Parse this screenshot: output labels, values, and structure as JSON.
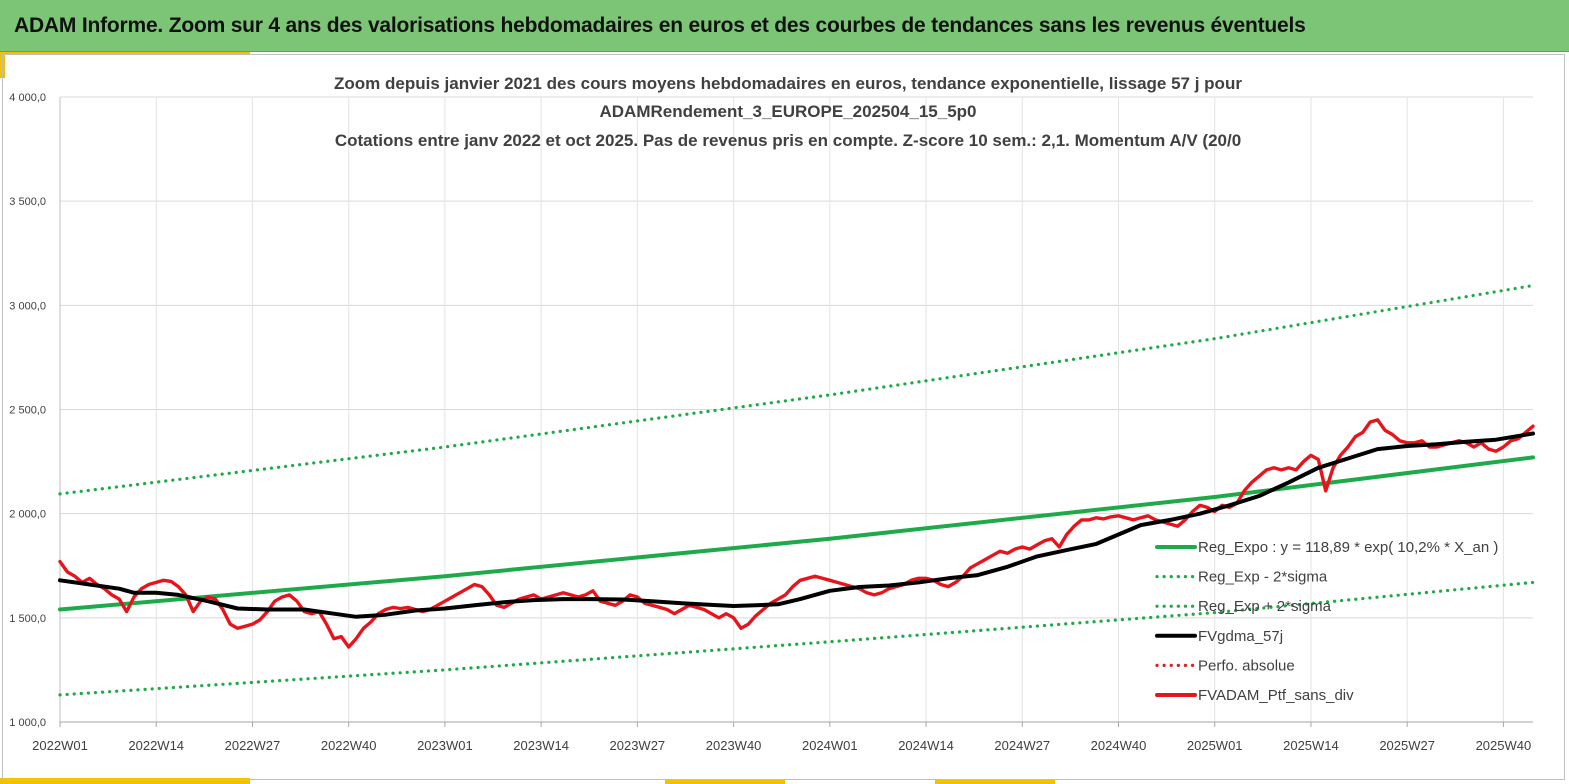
{
  "banner": {
    "title": "ADAM Informe. Zoom sur 4 ans des valorisations hebdomadaires en euros et des courbes de tendances sans les revenus éventuels"
  },
  "colors": {
    "banner_bg": "#7cc576",
    "accent": "#f2c200",
    "reg_expo": "#1faa4a",
    "fvgdma": "#000000",
    "perfo": "#e02020",
    "portfolio": "#e8141c"
  },
  "chart_data": {
    "type": "line",
    "title_lines": [
      "Zoom depuis janvier 2021 des cours moyens hebdomadaires  en euros, tendance exponentielle, lissage 57 j pour",
      "ADAMRendement_3_EUROPE_202504_15_5p0",
      "Cotations entre janv 2022 et oct 2025. Pas de revenus pris en compte. Z-score 10 sem.: 2,1. Momentum A/V (20/0"
    ],
    "ylim": [
      1000,
      4000
    ],
    "y_ticks": [
      {
        "value": 1000,
        "label": "1 000,0"
      },
      {
        "value": 1500,
        "label": "1 500,0"
      },
      {
        "value": 2000,
        "label": "2 000,0"
      },
      {
        "value": 2500,
        "label": "2 500,0"
      },
      {
        "value": 3000,
        "label": "3 000,0"
      },
      {
        "value": 3500,
        "label": "3 500,0"
      },
      {
        "value": 4000,
        "label": "4 000,0"
      }
    ],
    "xlim": [
      0,
      199
    ],
    "x_ticks": [
      {
        "week": 0,
        "label": "2022W01"
      },
      {
        "week": 13,
        "label": "2022W14"
      },
      {
        "week": 26,
        "label": "2022W27"
      },
      {
        "week": 39,
        "label": "2022W40"
      },
      {
        "week": 52,
        "label": "2023W01"
      },
      {
        "week": 65,
        "label": "2023W14"
      },
      {
        "week": 78,
        "label": "2023W27"
      },
      {
        "week": 91,
        "label": "2023W40"
      },
      {
        "week": 104,
        "label": "2024W01"
      },
      {
        "week": 117,
        "label": "2024W14"
      },
      {
        "week": 130,
        "label": "2024W27"
      },
      {
        "week": 143,
        "label": "2024W40"
      },
      {
        "week": 156,
        "label": "2025W01"
      },
      {
        "week": 169,
        "label": "2025W14"
      },
      {
        "week": 182,
        "label": "2025W27"
      },
      {
        "week": 195,
        "label": "2025W40"
      }
    ],
    "grid": true,
    "legend_position": "bottom-right",
    "series": [
      {
        "name": "Reg_Expo : y = 118,89 * exp( 10,2% *  X_an )",
        "style": "solid-thick",
        "color": "#1faa4a",
        "points": [
          [
            0,
            1540
          ],
          [
            52,
            1700
          ],
          [
            104,
            1880
          ],
          [
            156,
            2080
          ],
          [
            199,
            2270
          ]
        ]
      },
      {
        "name": "Reg_Exp - 2*sigma",
        "style": "dotted",
        "color": "#1faa4a",
        "points": [
          [
            0,
            1130
          ],
          [
            52,
            1250
          ],
          [
            104,
            1385
          ],
          [
            156,
            1525
          ],
          [
            199,
            1670
          ]
        ]
      },
      {
        "name": "Reg_Exp + 2*sigma",
        "style": "dotted",
        "color": "#1faa4a",
        "points": [
          [
            0,
            2095
          ],
          [
            52,
            2320
          ],
          [
            104,
            2570
          ],
          [
            156,
            2840
          ],
          [
            199,
            3095
          ]
        ]
      },
      {
        "name": "FVgdma_57j",
        "style": "solid-thick",
        "color": "#000000",
        "points": [
          [
            0,
            1680
          ],
          [
            4,
            1660
          ],
          [
            8,
            1640
          ],
          [
            10,
            1620
          ],
          [
            13,
            1620
          ],
          [
            16,
            1610
          ],
          [
            20,
            1580
          ],
          [
            24,
            1545
          ],
          [
            28,
            1540
          ],
          [
            33,
            1540
          ],
          [
            37,
            1520
          ],
          [
            40,
            1505
          ],
          [
            44,
            1515
          ],
          [
            48,
            1535
          ],
          [
            52,
            1545
          ],
          [
            56,
            1560
          ],
          [
            60,
            1575
          ],
          [
            64,
            1585
          ],
          [
            68,
            1590
          ],
          [
            72,
            1590
          ],
          [
            76,
            1588
          ],
          [
            80,
            1580
          ],
          [
            84,
            1570
          ],
          [
            88,
            1562
          ],
          [
            91,
            1557
          ],
          [
            94,
            1560
          ],
          [
            97,
            1565
          ],
          [
            100,
            1590
          ],
          [
            104,
            1630
          ],
          [
            108,
            1648
          ],
          [
            112,
            1655
          ],
          [
            116,
            1670
          ],
          [
            120,
            1690
          ],
          [
            124,
            1705
          ],
          [
            128,
            1745
          ],
          [
            132,
            1795
          ],
          [
            136,
            1825
          ],
          [
            140,
            1855
          ],
          [
            143,
            1900
          ],
          [
            146,
            1945
          ],
          [
            150,
            1970
          ],
          [
            154,
            2000
          ],
          [
            158,
            2040
          ],
          [
            162,
            2085
          ],
          [
            166,
            2150
          ],
          [
            170,
            2220
          ],
          [
            174,
            2265
          ],
          [
            178,
            2310
          ],
          [
            182,
            2325
          ],
          [
            186,
            2333
          ],
          [
            190,
            2345
          ],
          [
            194,
            2355
          ],
          [
            199,
            2385
          ]
        ]
      },
      {
        "name": "Perfo. absolue",
        "style": "dotted",
        "color": "#e02020",
        "points": []
      },
      {
        "name": "FVADAM_Ptf_sans_div",
        "style": "solid-thick",
        "color": "#e8141c",
        "points": [
          [
            0,
            1770
          ],
          [
            1,
            1720
          ],
          [
            2,
            1700
          ],
          [
            3,
            1670
          ],
          [
            4,
            1690
          ],
          [
            5,
            1660
          ],
          [
            6,
            1640
          ],
          [
            7,
            1610
          ],
          [
            8,
            1590
          ],
          [
            9,
            1530
          ],
          [
            10,
            1600
          ],
          [
            11,
            1640
          ],
          [
            12,
            1660
          ],
          [
            13,
            1670
          ],
          [
            14,
            1680
          ],
          [
            15,
            1675
          ],
          [
            16,
            1650
          ],
          [
            17,
            1610
          ],
          [
            18,
            1530
          ],
          [
            19,
            1580
          ],
          [
            20,
            1600
          ],
          [
            21,
            1590
          ],
          [
            22,
            1540
          ],
          [
            23,
            1470
          ],
          [
            24,
            1450
          ],
          [
            25,
            1460
          ],
          [
            26,
            1470
          ],
          [
            27,
            1490
          ],
          [
            28,
            1530
          ],
          [
            29,
            1580
          ],
          [
            30,
            1600
          ],
          [
            31,
            1610
          ],
          [
            32,
            1580
          ],
          [
            33,
            1530
          ],
          [
            34,
            1520
          ],
          [
            35,
            1530
          ],
          [
            36,
            1470
          ],
          [
            37,
            1400
          ],
          [
            38,
            1410
          ],
          [
            39,
            1360
          ],
          [
            40,
            1400
          ],
          [
            41,
            1450
          ],
          [
            42,
            1480
          ],
          [
            43,
            1520
          ],
          [
            44,
            1540
          ],
          [
            45,
            1550
          ],
          [
            46,
            1545
          ],
          [
            47,
            1550
          ],
          [
            48,
            1540
          ],
          [
            49,
            1530
          ],
          [
            50,
            1540
          ],
          [
            51,
            1560
          ],
          [
            52,
            1580
          ],
          [
            53,
            1600
          ],
          [
            54,
            1620
          ],
          [
            55,
            1640
          ],
          [
            56,
            1660
          ],
          [
            57,
            1650
          ],
          [
            58,
            1610
          ],
          [
            59,
            1560
          ],
          [
            60,
            1550
          ],
          [
            61,
            1570
          ],
          [
            62,
            1590
          ],
          [
            63,
            1600
          ],
          [
            64,
            1610
          ],
          [
            65,
            1590
          ],
          [
            66,
            1600
          ],
          [
            67,
            1610
          ],
          [
            68,
            1620
          ],
          [
            69,
            1610
          ],
          [
            70,
            1600
          ],
          [
            71,
            1610
          ],
          [
            72,
            1630
          ],
          [
            73,
            1580
          ],
          [
            74,
            1570
          ],
          [
            75,
            1560
          ],
          [
            76,
            1580
          ],
          [
            77,
            1610
          ],
          [
            78,
            1600
          ],
          [
            79,
            1570
          ],
          [
            80,
            1560
          ],
          [
            81,
            1550
          ],
          [
            82,
            1540
          ],
          [
            83,
            1520
          ],
          [
            84,
            1540
          ],
          [
            85,
            1560
          ],
          [
            86,
            1550
          ],
          [
            87,
            1540
          ],
          [
            88,
            1520
          ],
          [
            89,
            1500
          ],
          [
            90,
            1520
          ],
          [
            91,
            1500
          ],
          [
            92,
            1450
          ],
          [
            93,
            1470
          ],
          [
            94,
            1510
          ],
          [
            95,
            1540
          ],
          [
            96,
            1570
          ],
          [
            97,
            1590
          ],
          [
            98,
            1610
          ],
          [
            99,
            1650
          ],
          [
            100,
            1680
          ],
          [
            101,
            1690
          ],
          [
            102,
            1700
          ],
          [
            103,
            1690
          ],
          [
            104,
            1680
          ],
          [
            105,
            1670
          ],
          [
            106,
            1660
          ],
          [
            107,
            1650
          ],
          [
            108,
            1640
          ],
          [
            109,
            1620
          ],
          [
            110,
            1610
          ],
          [
            111,
            1620
          ],
          [
            112,
            1640
          ],
          [
            113,
            1650
          ],
          [
            114,
            1660
          ],
          [
            115,
            1680
          ],
          [
            116,
            1690
          ],
          [
            117,
            1690
          ],
          [
            118,
            1680
          ],
          [
            119,
            1660
          ],
          [
            120,
            1650
          ],
          [
            121,
            1670
          ],
          [
            122,
            1700
          ],
          [
            123,
            1740
          ],
          [
            124,
            1760
          ],
          [
            125,
            1780
          ],
          [
            126,
            1800
          ],
          [
            127,
            1820
          ],
          [
            128,
            1810
          ],
          [
            129,
            1830
          ],
          [
            130,
            1840
          ],
          [
            131,
            1830
          ],
          [
            132,
            1850
          ],
          [
            133,
            1870
          ],
          [
            134,
            1880
          ],
          [
            135,
            1840
          ],
          [
            136,
            1900
          ],
          [
            137,
            1940
          ],
          [
            138,
            1970
          ],
          [
            139,
            1970
          ],
          [
            140,
            1980
          ],
          [
            141,
            1975
          ],
          [
            142,
            1985
          ],
          [
            143,
            1990
          ],
          [
            144,
            1980
          ],
          [
            145,
            1970
          ],
          [
            146,
            1980
          ],
          [
            147,
            1990
          ],
          [
            148,
            1970
          ],
          [
            149,
            1960
          ],
          [
            150,
            1950
          ],
          [
            151,
            1940
          ],
          [
            152,
            1970
          ],
          [
            153,
            2010
          ],
          [
            154,
            2040
          ],
          [
            155,
            2030
          ],
          [
            156,
            2010
          ],
          [
            157,
            2040
          ],
          [
            158,
            2030
          ],
          [
            159,
            2050
          ],
          [
            160,
            2110
          ],
          [
            161,
            2150
          ],
          [
            162,
            2180
          ],
          [
            163,
            2210
          ],
          [
            164,
            2220
          ],
          [
            165,
            2210
          ],
          [
            166,
            2220
          ],
          [
            167,
            2210
          ],
          [
            168,
            2250
          ],
          [
            169,
            2280
          ],
          [
            170,
            2260
          ],
          [
            171,
            2110
          ],
          [
            172,
            2220
          ],
          [
            173,
            2280
          ],
          [
            174,
            2320
          ],
          [
            175,
            2370
          ],
          [
            176,
            2390
          ],
          [
            177,
            2440
          ],
          [
            178,
            2450
          ],
          [
            179,
            2400
          ],
          [
            180,
            2380
          ],
          [
            181,
            2350
          ],
          [
            182,
            2340
          ],
          [
            183,
            2340
          ],
          [
            184,
            2350
          ],
          [
            185,
            2320
          ],
          [
            186,
            2320
          ],
          [
            187,
            2330
          ],
          [
            188,
            2340
          ],
          [
            189,
            2350
          ],
          [
            190,
            2340
          ],
          [
            191,
            2320
          ],
          [
            192,
            2340
          ],
          [
            193,
            2310
          ],
          [
            194,
            2300
          ],
          [
            195,
            2320
          ],
          [
            196,
            2350
          ],
          [
            197,
            2360
          ],
          [
            198,
            2390
          ],
          [
            199,
            2420
          ]
        ]
      }
    ]
  }
}
